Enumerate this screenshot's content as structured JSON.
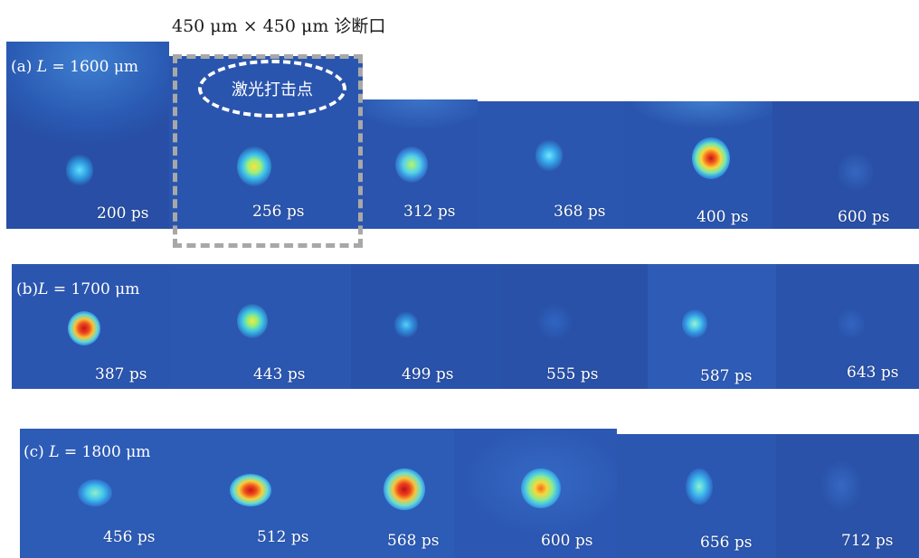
{
  "header_title": "450 μm × 450 μm 诊断口",
  "annotation_label": "激光打击点",
  "rows": [
    {
      "label_prefix": "(a) ",
      "label_var": "L",
      "label_value": " = 1600 μm",
      "frames": [
        "200 ps",
        "256 ps",
        "312 ps",
        "368 ps",
        "400 ps",
        "600 ps"
      ]
    },
    {
      "label_prefix": "(b)",
      "label_var": "L",
      "label_value": " = 1700 μm",
      "frames": [
        "387 ps",
        "443 ps",
        "499 ps",
        "555 ps",
        "587 ps",
        "643 ps"
      ]
    },
    {
      "label_prefix": "(c) ",
      "label_var": "L",
      "label_value": " = 1800 μm",
      "frames": [
        "456 ps",
        "512 ps",
        "568 ps",
        "600 ps",
        "656 ps",
        "712 ps"
      ]
    }
  ],
  "colors": {
    "background": "#2a52a8",
    "dashed_box": "#a8a8a8",
    "ellipse": "#ffffff"
  }
}
